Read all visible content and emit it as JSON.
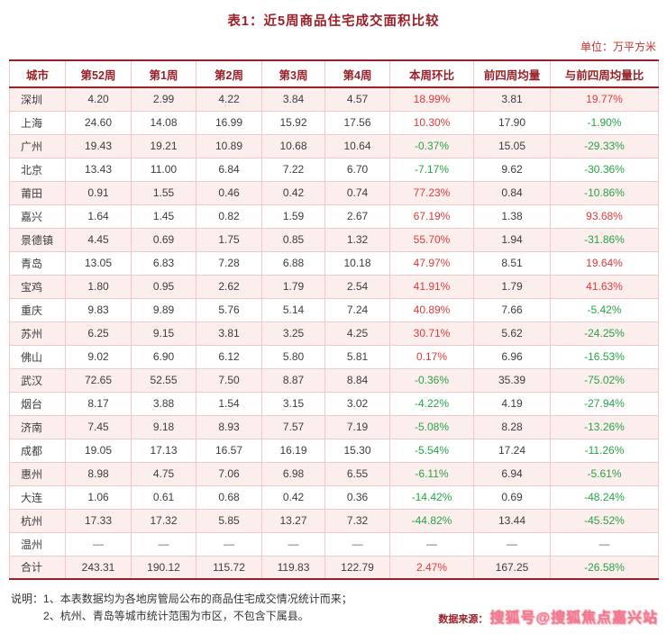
{
  "title": "表1：近5周商品住宅成交面积比较",
  "unit_label": "单位：万平方米",
  "table": {
    "columns": [
      "城市",
      "第52周",
      "第1周",
      "第2周",
      "第3周",
      "第4周",
      "本周环比",
      "前四周均量",
      "与前四周均量比"
    ],
    "rows": [
      [
        "深圳",
        "4.20",
        "2.99",
        "4.22",
        "3.84",
        "4.57",
        "18.99%",
        "3.81",
        "19.77%"
      ],
      [
        "上海",
        "24.60",
        "14.08",
        "16.99",
        "15.92",
        "17.56",
        "10.30%",
        "17.90",
        "-1.90%"
      ],
      [
        "广州",
        "19.43",
        "19.21",
        "10.89",
        "10.68",
        "10.64",
        "-0.37%",
        "15.05",
        "-29.33%"
      ],
      [
        "北京",
        "13.43",
        "11.00",
        "6.84",
        "7.22",
        "6.70",
        "-7.17%",
        "9.62",
        "-30.36%"
      ],
      [
        "莆田",
        "0.91",
        "1.55",
        "0.46",
        "0.42",
        "0.74",
        "77.23%",
        "0.84",
        "-10.86%"
      ],
      [
        "嘉兴",
        "1.64",
        "1.45",
        "0.82",
        "1.59",
        "2.67",
        "67.19%",
        "1.38",
        "93.68%"
      ],
      [
        "景德镇",
        "4.45",
        "0.69",
        "1.75",
        "0.85",
        "1.32",
        "55.70%",
        "1.94",
        "-31.86%"
      ],
      [
        "青岛",
        "13.05",
        "6.83",
        "7.28",
        "6.88",
        "10.18",
        "47.97%",
        "8.51",
        "19.64%"
      ],
      [
        "宝鸡",
        "1.80",
        "0.95",
        "2.62",
        "1.79",
        "2.54",
        "41.91%",
        "1.79",
        "41.63%"
      ],
      [
        "重庆",
        "9.83",
        "9.89",
        "5.76",
        "5.14",
        "7.24",
        "40.89%",
        "7.66",
        "-5.42%"
      ],
      [
        "苏州",
        "6.25",
        "9.15",
        "3.81",
        "3.25",
        "4.25",
        "30.71%",
        "5.62",
        "-24.25%"
      ],
      [
        "佛山",
        "9.02",
        "6.90",
        "6.12",
        "5.80",
        "5.81",
        "0.17%",
        "6.96",
        "-16.53%"
      ],
      [
        "武汉",
        "72.65",
        "52.55",
        "7.50",
        "8.87",
        "8.84",
        "-0.36%",
        "35.39",
        "-75.02%"
      ],
      [
        "烟台",
        "8.17",
        "3.88",
        "1.54",
        "3.15",
        "3.02",
        "-4.22%",
        "4.19",
        "-27.94%"
      ],
      [
        "济南",
        "7.45",
        "9.18",
        "8.93",
        "7.57",
        "7.19",
        "-5.08%",
        "8.28",
        "-13.26%"
      ],
      [
        "成都",
        "19.05",
        "17.13",
        "16.57",
        "16.19",
        "15.30",
        "-5.54%",
        "17.24",
        "-11.26%"
      ],
      [
        "惠州",
        "8.98",
        "4.75",
        "7.06",
        "6.98",
        "6.55",
        "-6.11%",
        "6.94",
        "-5.61%"
      ],
      [
        "大连",
        "1.06",
        "0.61",
        "0.68",
        "0.42",
        "0.36",
        "-14.42%",
        "0.69",
        "-48.24%"
      ],
      [
        "杭州",
        "17.33",
        "17.32",
        "5.85",
        "13.27",
        "7.32",
        "-44.82%",
        "13.44",
        "-45.52%"
      ],
      [
        "温州",
        "—",
        "—",
        "—",
        "—",
        "—",
        "—",
        "—",
        "—"
      ],
      [
        "合计",
        "243.31",
        "190.12",
        "115.72",
        "119.83",
        "122.79",
        "2.47%",
        "167.25",
        "-26.58%"
      ]
    ]
  },
  "notes": {
    "label": "说明：",
    "line1": "1、本表数据均为各地房管局公布的商品住宅成交情况统计而来；",
    "line2": "2、杭州、青岛等城市统计范围为市区，不包含下属县。"
  },
  "source": {
    "label": "数据来源：",
    "watermark": "搜狐号@搜狐焦点嘉兴站"
  },
  "colors": {
    "accent_dark_red": "#9a2028",
    "positive_red": "#e03a3a",
    "negative_green": "#27a344",
    "row_pink": "#fdeeee",
    "grid_pink": "#f0caca"
  }
}
